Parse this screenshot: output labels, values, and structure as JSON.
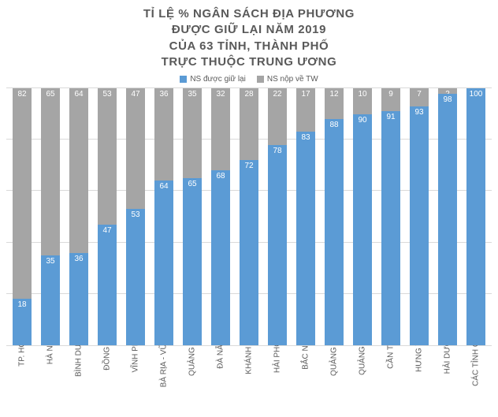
{
  "chart": {
    "type": "stacked-bar",
    "title_lines": [
      "TỈ LỆ % NGÂN SÁCH ĐỊA PHƯƠNG",
      "ĐƯỢC GIỮ LẠI NĂM 2019",
      "CỦA 63 TỈNH, THÀNH PHỐ",
      "TRỰC THUỘC TRUNG ƯƠNG"
    ],
    "title_fontsize": 15,
    "title_color": "#595959",
    "legend_fontsize": 10,
    "legend": [
      {
        "label": "NS được giữ lại",
        "color": "#5b9bd5"
      },
      {
        "label": "NS nộp về TW",
        "color": "#a5a5a5"
      }
    ],
    "ylim": [
      0,
      100
    ],
    "ytick_step": 20,
    "grid_color": "#d9d9d9",
    "background_color": "#ffffff",
    "bar_width_ratio": 0.68,
    "data_label_fontsize": 10,
    "data_label_color": "#ffffff",
    "xaxis_label_fontsize": 10,
    "xaxis_label_color": "#595959",
    "xaxis_label_rotation": -90,
    "series_names": [
      "retained",
      "remitted"
    ],
    "series_colors": {
      "retained": "#5b9bd5",
      "remitted": "#a5a5a5"
    },
    "categories": [
      "TP. HCM",
      "HÀ NỘI",
      "BÌNH DƯƠNG",
      "ĐỒNG NAI",
      "VĨNH PHÚC",
      "BÀ RỊA - VŨNG TÀU",
      "QUẢNG NINH",
      "ĐÀ NẴNG",
      "KHÁNH HÒA",
      "HẢI PHÒNG",
      "BẮC NINH",
      "QUẢNG NGÃI",
      "QUẢNG NAM",
      "CẦN THƠ",
      "HƯNG YÊN",
      "HẢI DƯƠNG",
      "CÁC TỈNH CÒN LẠI"
    ],
    "retained": [
      18,
      35,
      36,
      47,
      53,
      64,
      65,
      68,
      72,
      78,
      83,
      88,
      90,
      91,
      93,
      98,
      100
    ],
    "remitted": [
      82,
      65,
      64,
      53,
      47,
      36,
      35,
      32,
      28,
      22,
      17,
      12,
      10,
      9,
      7,
      2,
      0
    ]
  }
}
